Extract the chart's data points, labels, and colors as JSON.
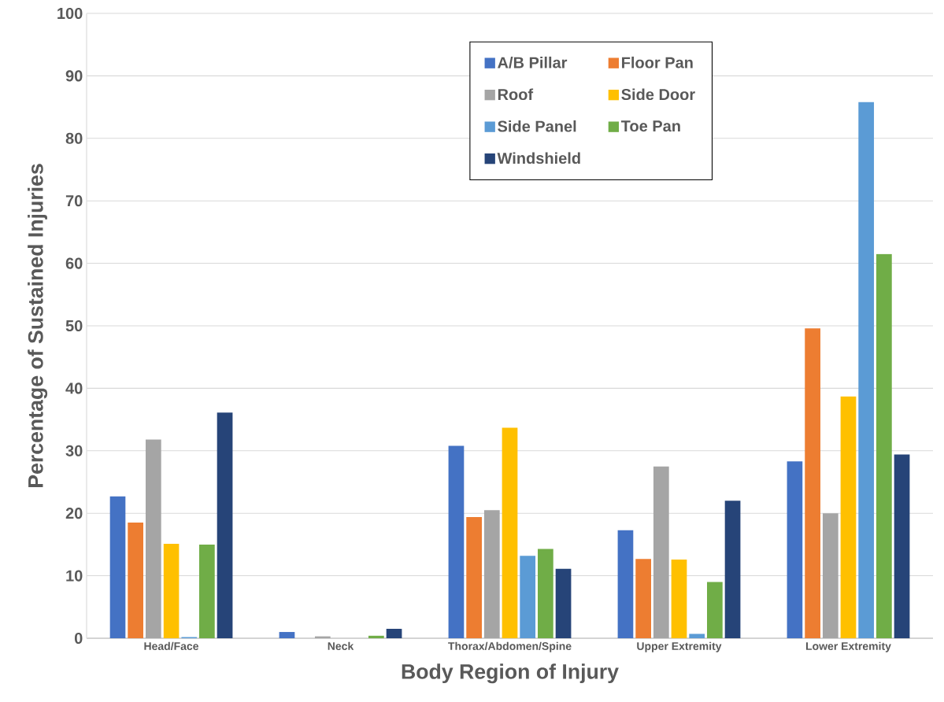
{
  "chart_data": {
    "type": "bar",
    "xlabel": "Body Region of Injury",
    "ylabel": "Percentage of Sustained Injuries",
    "categories": [
      "Head/Face",
      "Neck",
      "Thorax/Abdomen/Spine",
      "Upper Extremity",
      "Lower Extremity"
    ],
    "series": [
      {
        "name": "A/B Pillar",
        "color": "#4472c4",
        "values": [
          22.7,
          1.0,
          30.8,
          17.3,
          28.3
        ]
      },
      {
        "name": "Floor Pan",
        "color": "#ed7d31",
        "values": [
          18.5,
          0,
          19.4,
          12.7,
          49.6
        ]
      },
      {
        "name": "Roof",
        "color": "#a5a5a5",
        "values": [
          31.8,
          0.3,
          20.5,
          27.5,
          20.0
        ]
      },
      {
        "name": "Side Door",
        "color": "#ffc000",
        "values": [
          15.1,
          0,
          33.7,
          12.6,
          38.7
        ]
      },
      {
        "name": "Side Panel",
        "color": "#5b9bd5",
        "values": [
          0.2,
          0,
          13.2,
          0.7,
          85.8
        ]
      },
      {
        "name": "Toe Pan",
        "color": "#70ad47",
        "values": [
          15.0,
          0.4,
          14.3,
          9.0,
          61.5
        ]
      },
      {
        "name": "Windshield",
        "color": "#264478",
        "values": [
          36.1,
          1.5,
          11.1,
          22.0,
          29.4
        ]
      }
    ],
    "ylim": [
      0,
      100
    ],
    "yticks": [
      0,
      10,
      20,
      30,
      40,
      50,
      60,
      70,
      80,
      90,
      100
    ],
    "grid": "y",
    "legend": "top"
  }
}
